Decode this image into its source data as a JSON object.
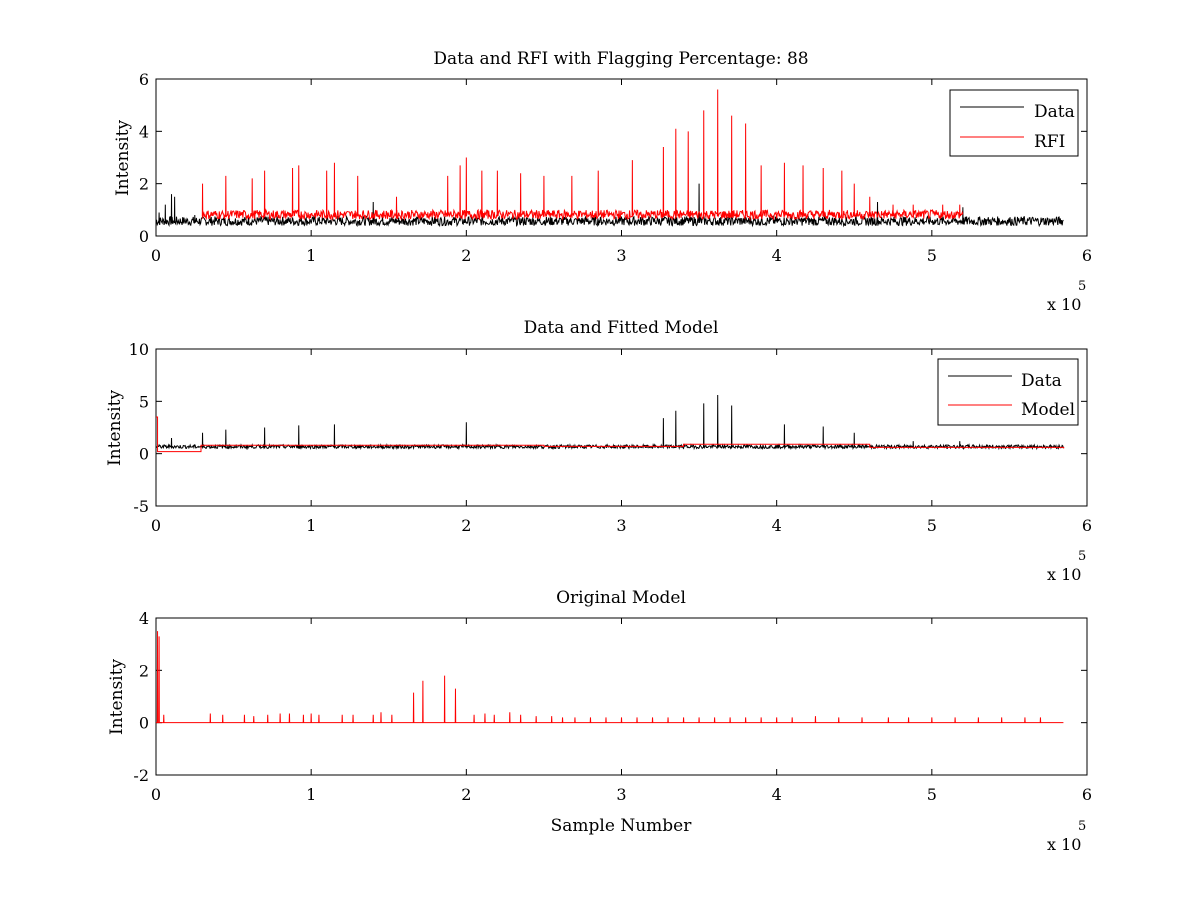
{
  "figure": {
    "background": "#ffffff"
  },
  "chart_data": [
    {
      "type": "line",
      "title": "Data and RFI with Flagging Percentage: 88",
      "xlabel": "",
      "ylabel": "Intensity",
      "xlim": [
        0,
        6
      ],
      "ylim": [
        0,
        6
      ],
      "xticks": [
        0,
        1,
        2,
        3,
        4,
        5,
        6
      ],
      "yticks": [
        0,
        2,
        4,
        6
      ],
      "x_exponent_label": "x 10",
      "x_exponent_power": "5",
      "legend": {
        "location": "top-right",
        "entries": [
          "Data",
          "RFI"
        ]
      },
      "series": [
        {
          "name": "Data",
          "color": "#000000",
          "baseline": 0.5,
          "shape": "baseline with spikes",
          "peaks": [
            [
              0.02,
              0.9
            ],
            [
              0.06,
              1.2
            ],
            [
              0.1,
              1.6
            ],
            [
              0.12,
              1.5
            ],
            [
              0.25,
              0.8
            ],
            [
              1.4,
              1.3
            ],
            [
              3.5,
              2.0
            ],
            [
              4.65,
              1.3
            ],
            [
              5.2,
              1.1
            ],
            [
              5.85,
              0.6
            ]
          ],
          "x_range": [
            0,
            5.85
          ]
        },
        {
          "name": "RFI",
          "color": "#ff0000",
          "baseline": 0.75,
          "shape": "baseline with spikes",
          "peaks": [
            [
              0.3,
              2.0
            ],
            [
              0.45,
              2.3
            ],
            [
              0.62,
              2.2
            ],
            [
              0.7,
              2.5
            ],
            [
              0.88,
              2.6
            ],
            [
              0.92,
              2.7
            ],
            [
              1.1,
              2.5
            ],
            [
              1.15,
              2.8
            ],
            [
              1.3,
              2.3
            ],
            [
              1.55,
              1.5
            ],
            [
              1.88,
              2.3
            ],
            [
              1.96,
              2.7
            ],
            [
              2.0,
              3.0
            ],
            [
              2.1,
              2.5
            ],
            [
              2.2,
              2.5
            ],
            [
              2.35,
              2.4
            ],
            [
              2.5,
              2.3
            ],
            [
              2.68,
              2.3
            ],
            [
              2.85,
              2.5
            ],
            [
              3.07,
              2.9
            ],
            [
              3.27,
              3.4
            ],
            [
              3.35,
              4.1
            ],
            [
              3.43,
              4.0
            ],
            [
              3.53,
              4.8
            ],
            [
              3.62,
              5.6
            ],
            [
              3.71,
              4.6
            ],
            [
              3.8,
              4.3
            ],
            [
              3.9,
              2.7
            ],
            [
              4.05,
              2.8
            ],
            [
              4.17,
              2.7
            ],
            [
              4.3,
              2.6
            ],
            [
              4.42,
              2.5
            ],
            [
              4.5,
              2.0
            ],
            [
              4.6,
              1.5
            ],
            [
              4.75,
              1.2
            ],
            [
              4.88,
              1.2
            ],
            [
              5.07,
              1.2
            ],
            [
              5.18,
              1.2
            ]
          ],
          "x_range": [
            0.3,
            5.2
          ]
        }
      ]
    },
    {
      "type": "line",
      "title": "Data and Fitted Model",
      "xlabel": "",
      "ylabel": "Intensity",
      "xlim": [
        0,
        6
      ],
      "ylim": [
        -5,
        10
      ],
      "xticks": [
        0,
        1,
        2,
        3,
        4,
        5,
        6
      ],
      "yticks": [
        -5,
        0,
        5,
        10
      ],
      "x_exponent_label": "x 10",
      "x_exponent_power": "5",
      "legend": {
        "location": "top-right",
        "entries": [
          "Data",
          "Model"
        ]
      },
      "series": [
        {
          "name": "Data",
          "color": "#000000",
          "baseline": 0.6,
          "shape": "baseline with spikes",
          "peaks": [
            [
              0.1,
              1.5
            ],
            [
              0.3,
              2.0
            ],
            [
              0.45,
              2.3
            ],
            [
              0.7,
              2.5
            ],
            [
              0.92,
              2.7
            ],
            [
              1.15,
              2.8
            ],
            [
              2.0,
              3.0
            ],
            [
              3.27,
              3.4
            ],
            [
              3.35,
              4.1
            ],
            [
              3.53,
              4.8
            ],
            [
              3.62,
              5.6
            ],
            [
              3.71,
              4.6
            ],
            [
              4.05,
              2.8
            ],
            [
              4.3,
              2.6
            ],
            [
              4.5,
              2.0
            ],
            [
              4.88,
              1.2
            ],
            [
              5.18,
              1.2
            ]
          ],
          "x_range": [
            0,
            5.85
          ]
        },
        {
          "name": "Model",
          "color": "#ff0000",
          "shape": "piecewise",
          "segments": [
            [
              0,
              3.5
            ],
            [
              0.01,
              0.2
            ],
            [
              0.28,
              0.2
            ],
            [
              0.29,
              0.8
            ],
            [
              2.5,
              0.7
            ],
            [
              3.4,
              0.9
            ],
            [
              4.6,
              0.6
            ],
            [
              5.85,
              0.5
            ]
          ],
          "x_range": [
            0,
            5.85
          ]
        }
      ]
    },
    {
      "type": "line",
      "title": "Original Model",
      "xlabel": "Sample Number",
      "ylabel": "Intensity",
      "xlim": [
        0,
        6
      ],
      "ylim": [
        -2,
        4
      ],
      "xticks": [
        0,
        1,
        2,
        3,
        4,
        5,
        6
      ],
      "yticks": [
        -2,
        0,
        2,
        4
      ],
      "x_exponent_label": "x 10",
      "x_exponent_power": "5",
      "legend": null,
      "series": [
        {
          "name": "Model",
          "color": "#ff0000",
          "baseline": 0.0,
          "shape": "baseline with spikes",
          "peaks": [
            [
              0.01,
              3.5
            ],
            [
              0.02,
              3.3
            ],
            [
              0.05,
              0.3
            ],
            [
              0.35,
              0.35
            ],
            [
              0.43,
              0.3
            ],
            [
              0.57,
              0.3
            ],
            [
              0.63,
              0.25
            ],
            [
              0.72,
              0.3
            ],
            [
              0.8,
              0.35
            ],
            [
              0.86,
              0.35
            ],
            [
              0.95,
              0.3
            ],
            [
              1.0,
              0.35
            ],
            [
              1.05,
              0.3
            ],
            [
              1.2,
              0.3
            ],
            [
              1.27,
              0.3
            ],
            [
              1.4,
              0.3
            ],
            [
              1.45,
              0.4
            ],
            [
              1.52,
              0.3
            ],
            [
              1.66,
              1.15
            ],
            [
              1.72,
              1.6
            ],
            [
              1.86,
              1.8
            ],
            [
              1.93,
              1.3
            ],
            [
              2.05,
              0.3
            ],
            [
              2.12,
              0.35
            ],
            [
              2.18,
              0.3
            ],
            [
              2.28,
              0.4
            ],
            [
              2.35,
              0.3
            ],
            [
              2.45,
              0.25
            ],
            [
              2.55,
              0.25
            ],
            [
              2.62,
              0.2
            ],
            [
              2.7,
              0.2
            ],
            [
              2.8,
              0.2
            ],
            [
              2.9,
              0.2
            ],
            [
              3.0,
              0.2
            ],
            [
              3.1,
              0.2
            ],
            [
              3.2,
              0.2
            ],
            [
              3.3,
              0.2
            ],
            [
              3.4,
              0.2
            ],
            [
              3.5,
              0.2
            ],
            [
              3.6,
              0.2
            ],
            [
              3.7,
              0.2
            ],
            [
              3.8,
              0.2
            ],
            [
              3.9,
              0.2
            ],
            [
              4.0,
              0.2
            ],
            [
              4.1,
              0.2
            ],
            [
              4.25,
              0.25
            ],
            [
              4.4,
              0.2
            ],
            [
              4.55,
              0.2
            ],
            [
              4.72,
              0.2
            ],
            [
              4.85,
              0.2
            ],
            [
              5.0,
              0.2
            ],
            [
              5.15,
              0.2
            ],
            [
              5.3,
              0.2
            ],
            [
              5.45,
              0.2
            ],
            [
              5.6,
              0.2
            ],
            [
              5.7,
              0.2
            ]
          ],
          "x_range": [
            0,
            5.85
          ]
        }
      ]
    }
  ]
}
